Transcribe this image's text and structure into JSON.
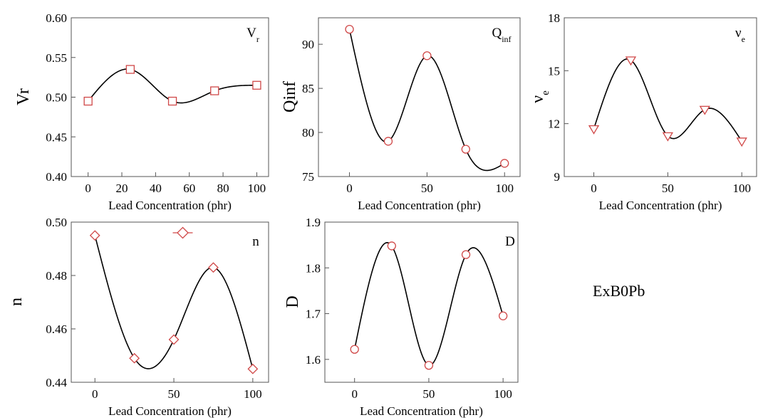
{
  "chart_data": [
    {
      "type": "scatter",
      "ylabel": "Vr",
      "xlabel": "Lead Concentration (phr)",
      "corner_label": "V",
      "corner_label_sub": "r",
      "x": [
        0,
        25,
        50,
        75,
        100
      ],
      "y": [
        0.495,
        0.535,
        0.495,
        0.508,
        0.515
      ],
      "marker": "square",
      "xlim": [
        -10,
        107
      ],
      "ylim": [
        0.4,
        0.6
      ],
      "xticks": [
        0,
        20,
        40,
        60,
        80,
        100
      ],
      "xtick_labels": [
        "0",
        "20",
        "40",
        "60",
        "80",
        "100"
      ],
      "yticks": [
        0.4,
        0.45,
        0.5,
        0.55,
        0.6
      ],
      "ytick_labels": [
        "0.40",
        "0.45",
        "0.50",
        "0.55",
        "0.60"
      ],
      "grid": false
    },
    {
      "type": "scatter",
      "ylabel": "Qinf",
      "xlabel": "Lead Concentration (phr)",
      "corner_label": "Q",
      "corner_label_sub": "inf",
      "x": [
        0,
        25,
        50,
        75,
        100
      ],
      "y": [
        91.7,
        79.0,
        88.7,
        78.1,
        76.5
      ],
      "marker": "circle",
      "xlim": [
        -20,
        110
      ],
      "ylim": [
        75,
        93
      ],
      "xticks": [
        0,
        50,
        100
      ],
      "xtick_labels": [
        "0",
        "50",
        "100"
      ],
      "yticks": [
        75,
        80,
        85,
        90
      ],
      "ytick_labels": [
        "75",
        "80",
        "85",
        "90"
      ],
      "grid": false
    },
    {
      "type": "scatter",
      "ylabel": "ν",
      "ylabel_sub": "e",
      "xlabel": "Lead Concentration (phr)",
      "corner_label": "ν",
      "corner_label_sub": "e",
      "x": [
        0,
        25,
        50,
        75,
        100
      ],
      "y": [
        11.7,
        15.6,
        11.3,
        12.8,
        11.0
      ],
      "marker": "triangle-down",
      "xlim": [
        -20,
        110
      ],
      "ylim": [
        9,
        18
      ],
      "xticks": [
        0,
        50,
        100
      ],
      "xtick_labels": [
        "0",
        "50",
        "100"
      ],
      "yticks": [
        9,
        12,
        15,
        18
      ],
      "ytick_labels": [
        "9",
        "12",
        "15",
        "18"
      ],
      "grid": false
    },
    {
      "type": "scatter",
      "ylabel": "n",
      "xlabel": "Lead Concentration (phr)",
      "corner_label": "n",
      "x": [
        0,
        25,
        50,
        75,
        100
      ],
      "y": [
        0.495,
        0.449,
        0.456,
        0.483,
        0.445
      ],
      "marker": "diamond",
      "xlim": [
        -15,
        110
      ],
      "ylim": [
        0.44,
        0.5
      ],
      "xticks": [
        0,
        50,
        100
      ],
      "xtick_labels": [
        "0",
        "50",
        "100"
      ],
      "yticks": [
        0.44,
        0.46,
        0.48,
        0.5
      ],
      "ytick_labels": [
        "0.44",
        "0.46",
        "0.48",
        "0.50"
      ],
      "legend": "top-center",
      "grid": false
    },
    {
      "type": "scatter",
      "ylabel": "D",
      "xlabel": "Lead Concentration (phr)",
      "corner_label": "D",
      "x": [
        0,
        25,
        50,
        75,
        100
      ],
      "y": [
        1.622,
        1.848,
        1.587,
        1.829,
        1.695
      ],
      "marker": "circle",
      "xlim": [
        -20,
        110
      ],
      "ylim": [
        1.55,
        1.9
      ],
      "xticks": [
        0,
        50,
        100
      ],
      "xtick_labels": [
        "0",
        "50",
        "100"
      ],
      "yticks": [
        1.6,
        1.7,
        1.8,
        1.9
      ],
      "ytick_labels": [
        "1.6",
        "1.7",
        "1.8",
        "1.9"
      ],
      "grid": false
    }
  ],
  "footnote": "ExB0Pb",
  "colors": {
    "marker_stroke": "#d04848",
    "curve": "#000000",
    "frame": "#555555"
  }
}
